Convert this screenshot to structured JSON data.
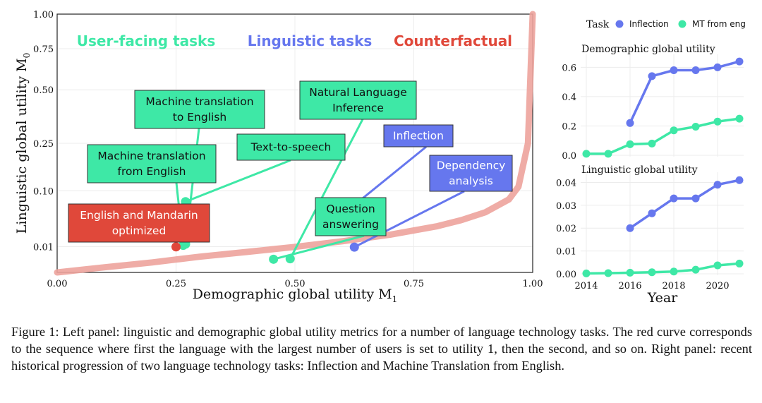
{
  "caption": "Figure 1: Left panel: linguistic and demographic global utility metrics for a number of language technology tasks. The red curve corresponds to the sequence where first the language with the largest number of users is set to utility 1, then the second, and so on. Right panel: recent historical progression of two language technology tasks: Inflection and Machine Translation from English.",
  "colors": {
    "user_facing": "#3ee8a6",
    "linguistic": "#6677ee",
    "counterfactual": "#e0483a",
    "curve": "#eda39c",
    "inflection_series": "#6677ee",
    "mt_series": "#3ee8a6"
  },
  "chart_data": [
    {
      "type": "scatter",
      "xlabel": "Demographic global utility",
      "xlabel_symbol": "M",
      "xlabel_sub": "1",
      "ylabel": "Linguistic global utility",
      "ylabel_symbol": "M",
      "ylabel_sub": "0",
      "xlim": [
        0,
        1
      ],
      "y_scale": "sqrt",
      "ylim": [
        0,
        1
      ],
      "x_ticks": [
        {
          "value": 0,
          "label": "0.00"
        },
        {
          "value": 0.25,
          "label": "0.25"
        },
        {
          "value": 0.5,
          "label": "0.50"
        },
        {
          "value": 0.75,
          "label": "0.75"
        },
        {
          "value": 1,
          "label": "1.00"
        }
      ],
      "y_ticks": [
        {
          "value": 0.01,
          "label": "0.01"
        },
        {
          "value": 0.1,
          "label": "0.10"
        },
        {
          "value": 0.25,
          "label": "0.25"
        },
        {
          "value": 0.5,
          "label": "0.50"
        },
        {
          "value": 0.75,
          "label": "0.75"
        },
        {
          "value": 1,
          "label": "1.00"
        }
      ],
      "grid": true,
      "category_labels": [
        {
          "text": "User-facing tasks",
          "group": "user_facing"
        },
        {
          "text": "Linguistic tasks",
          "group": "linguistic"
        },
        {
          "text": "Counterfactual",
          "group": "counterfactual"
        }
      ],
      "points": [
        {
          "lines": [
            "Machine translation",
            "to English"
          ],
          "x": 0.27,
          "y": 0.012,
          "group": "user_facing"
        },
        {
          "lines": [
            "Machine translation",
            "from English"
          ],
          "x": 0.265,
          "y": 0.011,
          "group": "user_facing"
        },
        {
          "lines": [
            "Text-to-speech"
          ],
          "x": 0.27,
          "y": 0.075,
          "group": "user_facing"
        },
        {
          "lines": [
            "Natural Language",
            "Inference"
          ],
          "x": 0.49,
          "y": 0.0028,
          "group": "user_facing"
        },
        {
          "lines": [
            "Question",
            "answering"
          ],
          "x": 0.455,
          "y": 0.0026,
          "group": "user_facing"
        },
        {
          "lines": [
            "Inflection"
          ],
          "x": 0.6,
          "y": 0.05,
          "group": "linguistic"
        },
        {
          "lines": [
            "Dependency",
            "analysis"
          ],
          "x": 0.625,
          "y": 0.0096,
          "group": "linguistic"
        },
        {
          "lines": [
            "English and Mandarin",
            "optimized"
          ],
          "x": 0.25,
          "y": 0.0098,
          "group": "counterfactual"
        }
      ],
      "curve": {
        "name": "counterfactual sequence",
        "x": [
          0,
          0.1,
          0.2,
          0.25,
          0.3,
          0.4,
          0.5,
          0.6,
          0.7,
          0.8,
          0.85,
          0.9,
          0.95,
          0.97,
          0.99,
          1.0
        ],
        "y": [
          0,
          0.0004,
          0.0015,
          0.0025,
          0.0037,
          0.0063,
          0.0098,
          0.0146,
          0.0213,
          0.0321,
          0.041,
          0.054,
          0.08,
          0.11,
          0.25,
          1.0
        ]
      }
    },
    {
      "type": "line",
      "legend_title": "Task",
      "legend_position": "top",
      "xlabel": "Year",
      "x_ticks": [
        2014,
        2016,
        2018,
        2020
      ],
      "xlim": [
        2014,
        2021
      ],
      "panels": [
        {
          "title": "Demographic global utility",
          "ylim": [
            0,
            0.65
          ],
          "y_ticks": [
            {
              "value": 0,
              "label": "0.0"
            },
            {
              "value": 0.2,
              "label": "0.2"
            },
            {
              "value": 0.4,
              "label": "0.4"
            },
            {
              "value": 0.6,
              "label": "0.6"
            }
          ],
          "series": [
            {
              "name": "Inflection",
              "x": [
                2016,
                2017,
                2018,
                2019,
                2020,
                2021
              ],
              "values": [
                0.22,
                0.54,
                0.58,
                0.58,
                0.6,
                0.64
              ]
            },
            {
              "name": "MT from eng",
              "x": [
                2014,
                2015,
                2016,
                2017,
                2018,
                2019,
                2020,
                2021
              ],
              "values": [
                0.01,
                0.01,
                0.075,
                0.08,
                0.17,
                0.195,
                0.23,
                0.25
              ]
            }
          ]
        },
        {
          "title": "Linguistic global utility",
          "ylim": [
            0,
            0.042
          ],
          "y_ticks": [
            {
              "value": 0,
              "label": "0.00"
            },
            {
              "value": 0.01,
              "label": "0.01"
            },
            {
              "value": 0.02,
              "label": "0.02"
            },
            {
              "value": 0.03,
              "label": "0.03"
            },
            {
              "value": 0.04,
              "label": "0.04"
            }
          ],
          "series": [
            {
              "name": "Inflection",
              "x": [
                2016,
                2017,
                2018,
                2019,
                2020,
                2021
              ],
              "values": [
                0.02,
                0.0265,
                0.033,
                0.033,
                0.039,
                0.041
              ]
            },
            {
              "name": "MT from eng",
              "x": [
                2014,
                2015,
                2016,
                2017,
                2018,
                2019,
                2020,
                2021
              ],
              "values": [
                0.0002,
                0.0003,
                0.0005,
                0.0007,
                0.001,
                0.0018,
                0.0037,
                0.0045
              ]
            }
          ]
        }
      ]
    }
  ]
}
